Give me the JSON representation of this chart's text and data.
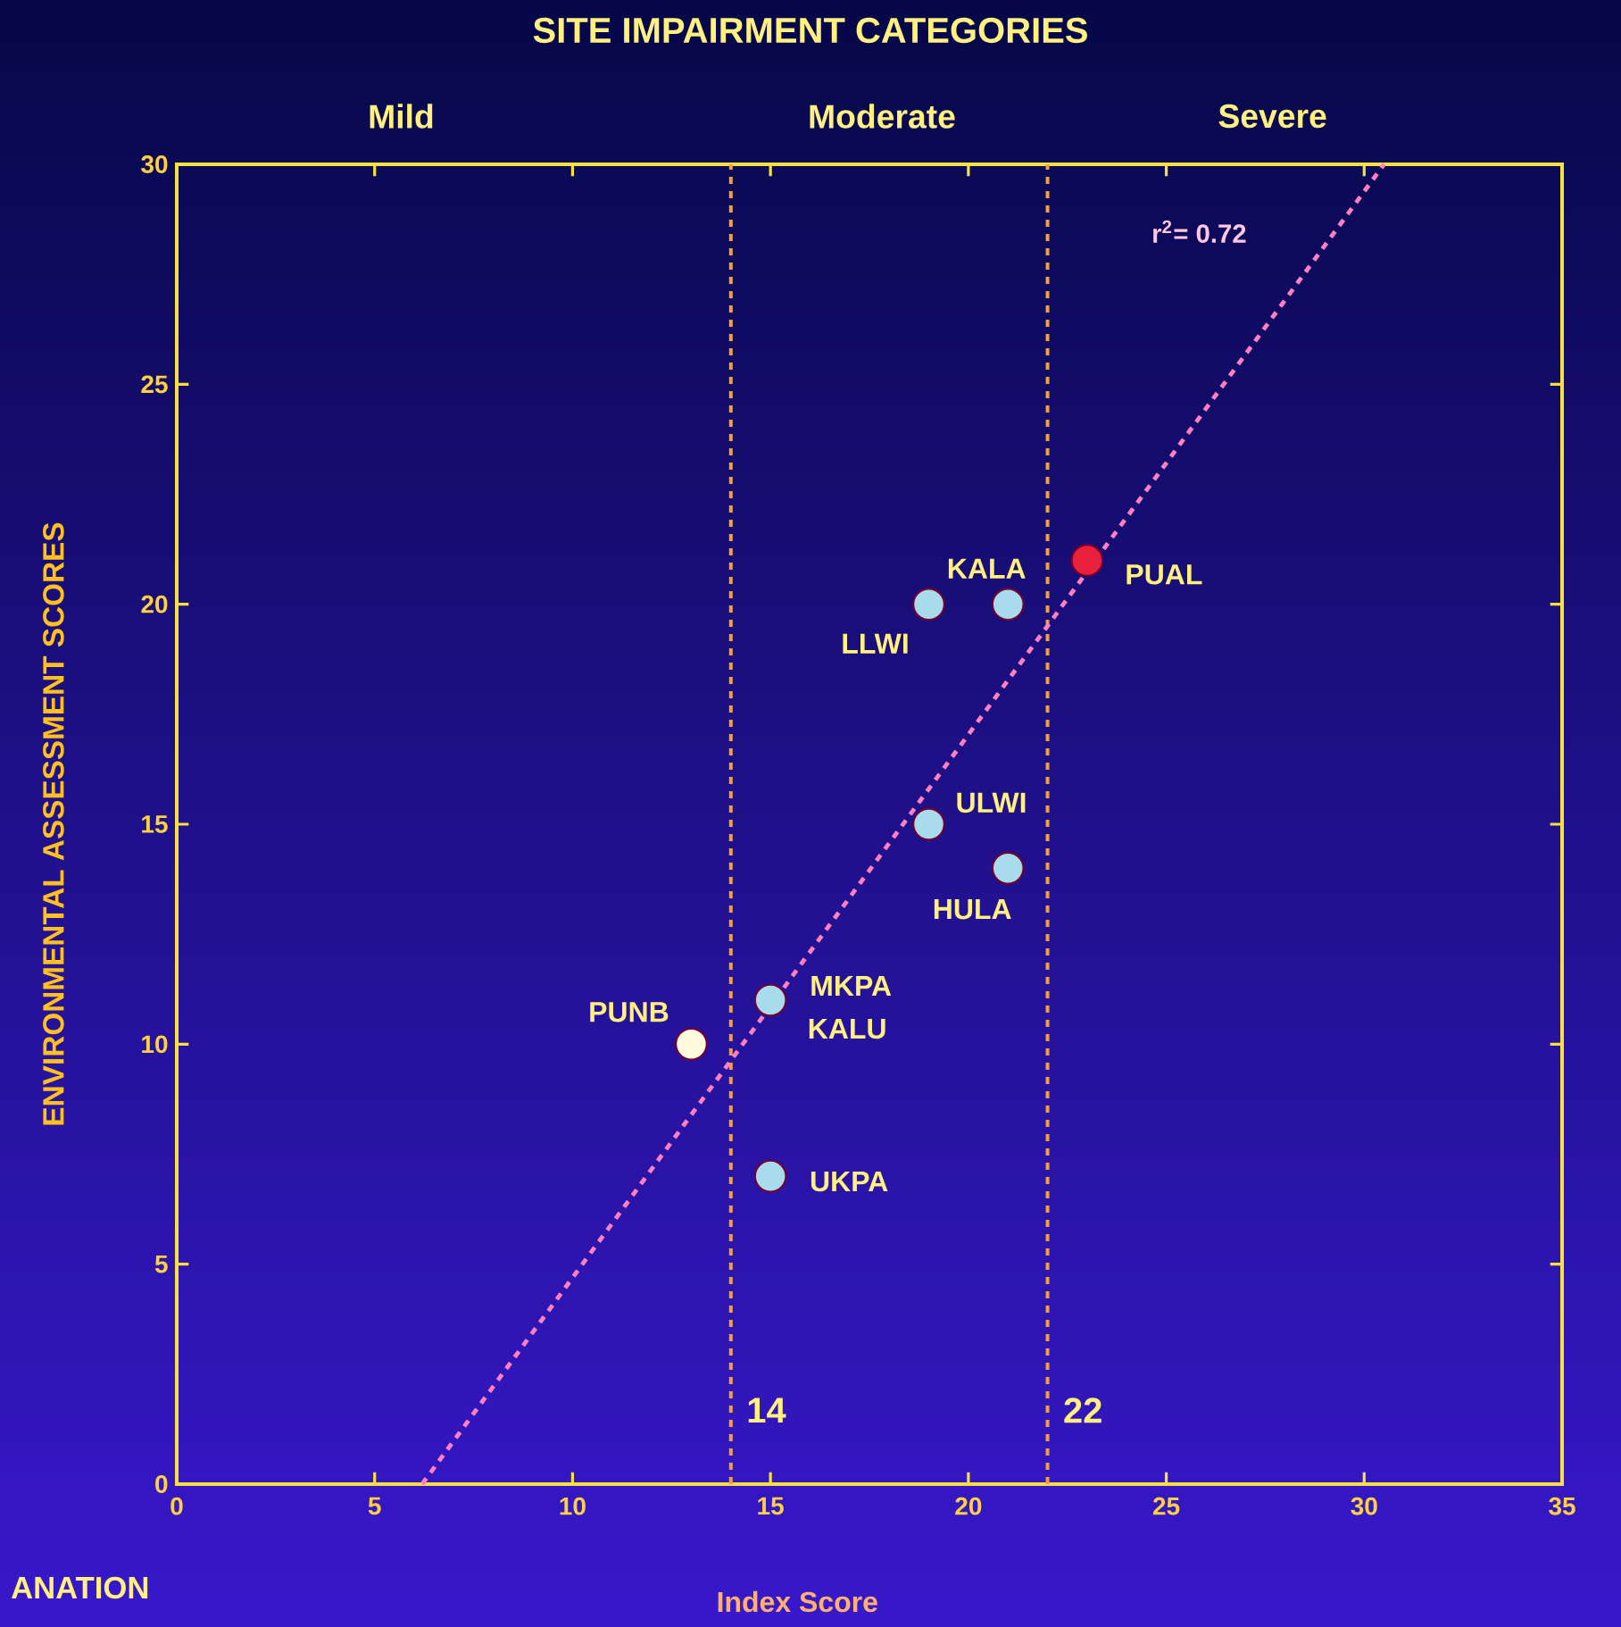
{
  "chart_data": {
    "type": "scatter",
    "title": "SITE IMPAIRMENT CATEGORIES",
    "xlabel": "Index Score",
    "ylabel": "ENVIRONMENTAL ASSESSMENT SCORES",
    "xlim": [
      0,
      35
    ],
    "ylim": [
      0,
      30
    ],
    "xticks": [
      0,
      5,
      10,
      15,
      20,
      25,
      30,
      35
    ],
    "yticks": [
      0,
      5,
      10,
      15,
      20,
      25,
      30
    ],
    "marker": "circle",
    "series": [
      {
        "type": "scatter",
        "x": [
          23,
          21,
          19,
          19,
          21,
          15,
          13,
          15
        ],
        "values": [
          21,
          20,
          20,
          15,
          14,
          11,
          10,
          7
        ],
        "colors": [
          "#e8203c",
          "#a8dcec",
          "#a8dcec",
          "#a8dcec",
          "#a8dcec",
          "#a8dcec",
          "#fffadc",
          "#a8dcec"
        ]
      },
      {
        "type": "line",
        "x": [
          6.2,
          30.5
        ],
        "values": [
          0,
          30
        ],
        "color": "#ff80c0",
        "line_style": "dashed",
        "marker": "none"
      }
    ],
    "ref_lines": [
      {
        "axis": "x",
        "value": 14,
        "label": "14",
        "color": "#f0a040",
        "line_style": "dashed"
      },
      {
        "axis": "x",
        "value": 22,
        "label": "22",
        "color": "#f0a040",
        "line_style": "dashed"
      }
    ],
    "annotations": [
      "Mild",
      "Moderate",
      "Severe",
      "r$^{2}$= 0.72",
      "ANATION",
      {
        "text": "PUAL",
        "x": 23,
        "y": 21
      },
      {
        "text": "KALA",
        "x": 21,
        "y": 20
      },
      {
        "text": "LLWI",
        "x": 19,
        "y": 20
      },
      {
        "text": "ULWI",
        "x": 19,
        "y": 15
      },
      {
        "text": "HULA",
        "x": 21,
        "y": 14
      },
      {
        "text": "MKPA",
        "x": 15,
        "y": 11
      },
      {
        "text": "KALU",
        "x": 15,
        "y": 11
      },
      {
        "text": "PUNB",
        "x": 13,
        "y": 10
      },
      {
        "text": "UKPA",
        "x": 15,
        "y": 7
      }
    ]
  }
}
